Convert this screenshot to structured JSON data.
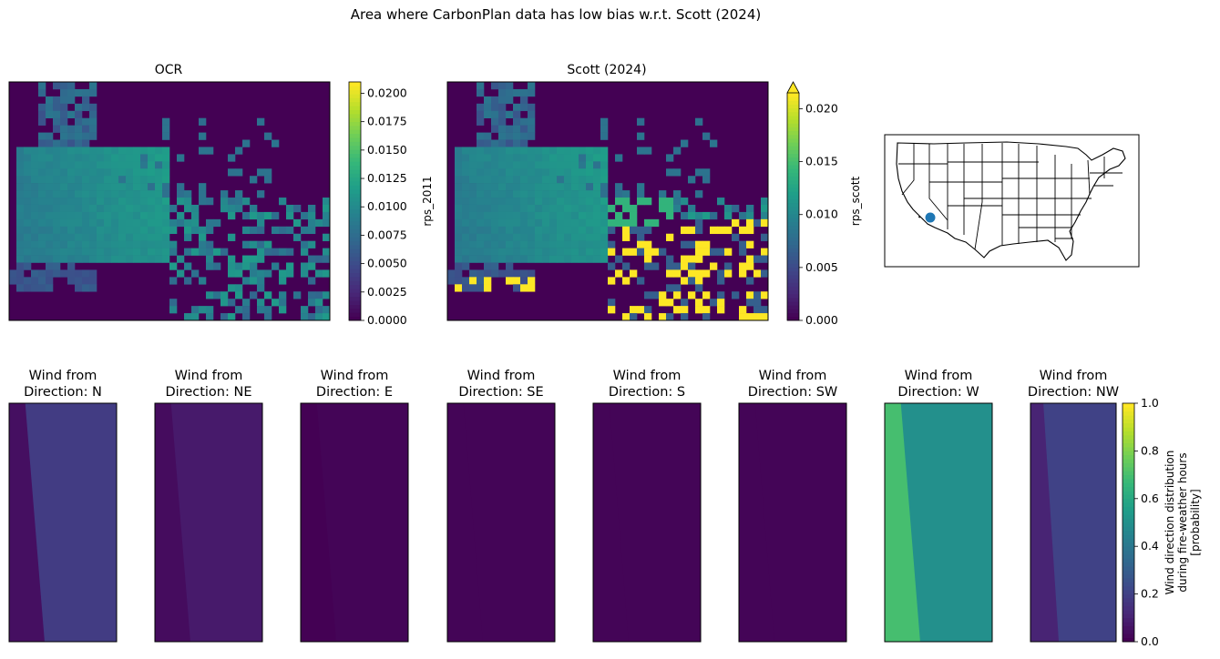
{
  "figure": {
    "suptitle": "Area where CarbonPlan data has low bias w.r.t. Scott (2024)"
  },
  "colors": {
    "viridis": [
      "#440154",
      "#482878",
      "#3e4989",
      "#31688e",
      "#26828e",
      "#1f9e89",
      "#35b779",
      "#6ece58",
      "#b5de2b",
      "#fde725"
    ],
    "marker": "#1f77b4"
  },
  "chart_data": [
    {
      "type": "heatmap",
      "title": "OCR",
      "colorbar_label": "rps_2011",
      "colorbar_ticks": [
        "0.0000",
        "0.0025",
        "0.0050",
        "0.0075",
        "0.0100",
        "0.0125",
        "0.0150",
        "0.0175",
        "0.0200"
      ],
      "colorbar_range": [
        0,
        0.021
      ]
    },
    {
      "type": "heatmap",
      "title": "Scott (2024)",
      "colorbar_label": "rps_scott",
      "colorbar_ticks": [
        "0.000",
        "0.005",
        "0.010",
        "0.015",
        "0.020"
      ],
      "colorbar_range": [
        0,
        0.0215
      ],
      "colorbar_extend": "max"
    },
    {
      "type": "map",
      "title": "",
      "description": "United States state boundaries with location marker",
      "marker_region": "southern California / Arizona border"
    },
    {
      "type": "heatmap",
      "group": "wind_direction",
      "colorbar_label": "Wind direction distribution during fire-weather hours [probability]",
      "colorbar_label_lines": [
        "Wind direction distribution",
        "during fire-weather hours",
        "[probability]"
      ],
      "colorbar_ticks": [
        "0.0",
        "0.2",
        "0.4",
        "0.6",
        "0.8",
        "1.0"
      ],
      "colorbar_range": [
        0,
        1
      ],
      "panels": [
        {
          "title": [
            "Wind from",
            "Direction: N"
          ],
          "left_value": 0.04,
          "right_value": 0.18
        },
        {
          "title": [
            "Wind from",
            "Direction: NE"
          ],
          "left_value": 0.03,
          "right_value": 0.07
        },
        {
          "title": [
            "Wind from",
            "Direction: E"
          ],
          "left_value": 0.0,
          "right_value": 0.01
        },
        {
          "title": [
            "Wind from",
            "Direction: SE"
          ],
          "left_value": 0.01,
          "right_value": 0.01
        },
        {
          "title": [
            "Wind from",
            "Direction: S"
          ],
          "left_value": 0.01,
          "right_value": 0.01
        },
        {
          "title": [
            "Wind from",
            "Direction: SW"
          ],
          "left_value": 0.01,
          "right_value": 0.01
        },
        {
          "title": [
            "Wind from",
            "Direction: W"
          ],
          "left_value": 0.7,
          "right_value": 0.5
        },
        {
          "title": [
            "Wind from",
            "Direction: NW"
          ],
          "left_value": 0.1,
          "right_value": 0.2
        }
      ]
    }
  ]
}
